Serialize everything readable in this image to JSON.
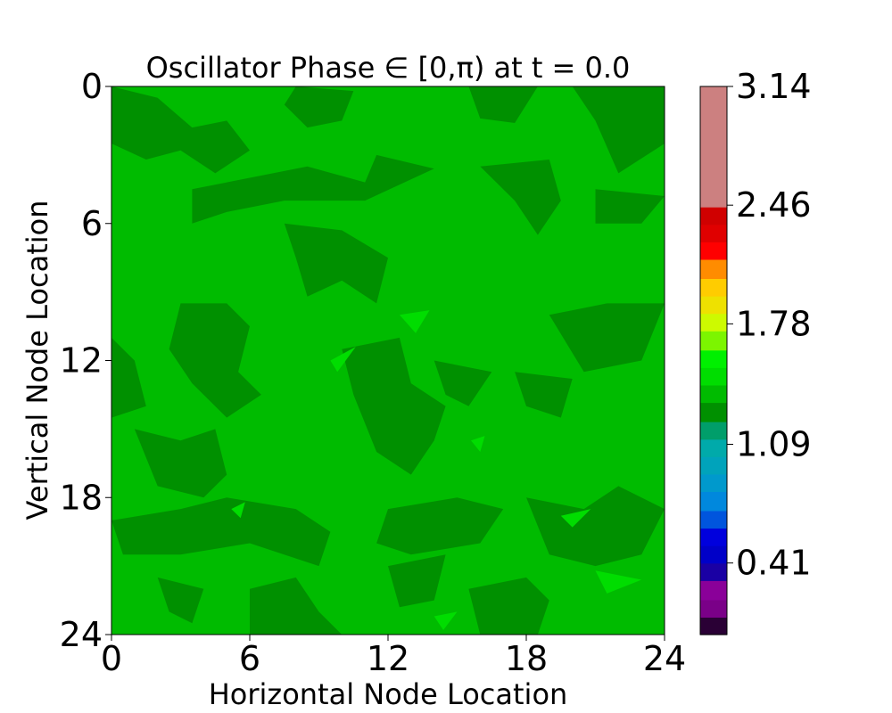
{
  "chart_data": {
    "type": "heatmap",
    "subtype": "filled-contour",
    "title": "Oscillator Phase ∈ [0,π) at t = 0.0",
    "xlabel": "Horizontal Node Location",
    "ylabel": "Vertical Node Location",
    "xlim": [
      0,
      24
    ],
    "ylim": [
      24,
      0
    ],
    "y_axis_inverted": true,
    "x_ticks": [
      "0",
      "6",
      "12",
      "18",
      "24"
    ],
    "y_ticks": [
      "0",
      "6",
      "12",
      "18",
      "24"
    ],
    "background_level_color": "#00bb00",
    "colorbar": {
      "range": [
        0,
        3.14
      ],
      "tick_labels": [
        "3.14",
        "2.46",
        "1.78",
        "1.09",
        "0.41"
      ],
      "tick_values": [
        3.14,
        2.46,
        1.78,
        1.09,
        0.41
      ],
      "levels": [
        {
          "from": 0.0,
          "to": 0.1,
          "color": "#2a0035"
        },
        {
          "from": 0.1,
          "to": 0.2,
          "color": "#7a0088"
        },
        {
          "from": 0.2,
          "to": 0.31,
          "color": "#8a0099"
        },
        {
          "from": 0.31,
          "to": 0.41,
          "color": "#1a00a4"
        },
        {
          "from": 0.41,
          "to": 0.51,
          "color": "#0000c8"
        },
        {
          "from": 0.51,
          "to": 0.61,
          "color": "#0000dd"
        },
        {
          "from": 0.61,
          "to": 0.71,
          "color": "#0055dd"
        },
        {
          "from": 0.71,
          "to": 0.82,
          "color": "#0088dd"
        },
        {
          "from": 0.82,
          "to": 0.92,
          "color": "#0099cc"
        },
        {
          "from": 0.92,
          "to": 1.02,
          "color": "#00a3bb"
        },
        {
          "from": 1.02,
          "to": 1.12,
          "color": "#00aaaa"
        },
        {
          "from": 1.12,
          "to": 1.22,
          "color": "#009e6a"
        },
        {
          "from": 1.22,
          "to": 1.33,
          "color": "#009000"
        },
        {
          "from": 1.33,
          "to": 1.43,
          "color": "#00bb00"
        },
        {
          "from": 1.43,
          "to": 1.53,
          "color": "#00dd00"
        },
        {
          "from": 1.53,
          "to": 1.63,
          "color": "#00f000"
        },
        {
          "from": 1.63,
          "to": 1.74,
          "color": "#7cf500"
        },
        {
          "from": 1.74,
          "to": 1.84,
          "color": "#cdfa00"
        },
        {
          "from": 1.84,
          "to": 1.94,
          "color": "#eee100"
        },
        {
          "from": 1.94,
          "to": 2.04,
          "color": "#ffcc00"
        },
        {
          "from": 2.04,
          "to": 2.15,
          "color": "#ff8c00"
        },
        {
          "from": 2.15,
          "to": 2.25,
          "color": "#ff0000"
        },
        {
          "from": 2.25,
          "to": 2.35,
          "color": "#e00000"
        },
        {
          "from": 2.35,
          "to": 2.45,
          "color": "#d00000"
        },
        {
          "from": 2.45,
          "to": 3.14,
          "color": "#cc8080"
        }
      ]
    },
    "patches": [
      {
        "level": 1.28,
        "color": "#009000",
        "points": [
          [
            0,
            0
          ],
          [
            2,
            0.5
          ],
          [
            3.5,
            1.8
          ],
          [
            5,
            1.5
          ],
          [
            6,
            2.8
          ],
          [
            4.5,
            3.8
          ],
          [
            3,
            2.8
          ],
          [
            1.5,
            3.2
          ],
          [
            0,
            2.5
          ]
        ]
      },
      {
        "level": 1.28,
        "color": "#009000",
        "points": [
          [
            3.5,
            4.5
          ],
          [
            6,
            4
          ],
          [
            8.5,
            3.5
          ],
          [
            11,
            4.2
          ],
          [
            11.5,
            3
          ],
          [
            14,
            3.6
          ],
          [
            11,
            5
          ],
          [
            7.5,
            5
          ],
          [
            5,
            5.5
          ],
          [
            3.5,
            6
          ]
        ]
      },
      {
        "level": 1.28,
        "color": "#009000",
        "points": [
          [
            8,
            0
          ],
          [
            10.5,
            0.2
          ],
          [
            10,
            1.5
          ],
          [
            8.5,
            1.8
          ],
          [
            7.5,
            0.8
          ]
        ]
      },
      {
        "level": 1.28,
        "color": "#009000",
        "points": [
          [
            15.5,
            0
          ],
          [
            18.5,
            0
          ],
          [
            17.5,
            1.6
          ],
          [
            16,
            1.4
          ]
        ]
      },
      {
        "level": 1.28,
        "color": "#009000",
        "points": [
          [
            20,
            0
          ],
          [
            24,
            0
          ],
          [
            24,
            2.5
          ],
          [
            22,
            3.8
          ],
          [
            21,
            1.5
          ]
        ]
      },
      {
        "level": 1.28,
        "color": "#009000",
        "points": [
          [
            16,
            3.5
          ],
          [
            19,
            3.2
          ],
          [
            19.5,
            5
          ],
          [
            18.5,
            6.5
          ],
          [
            17.5,
            5
          ]
        ]
      },
      {
        "level": 1.28,
        "color": "#009000",
        "points": [
          [
            21,
            4.5
          ],
          [
            24,
            4.8
          ],
          [
            23,
            6
          ],
          [
            21,
            6
          ]
        ]
      },
      {
        "level": 1.28,
        "color": "#009000",
        "points": [
          [
            7.5,
            6
          ],
          [
            10,
            6.3
          ],
          [
            12,
            7.5
          ],
          [
            11.5,
            9.5
          ],
          [
            10,
            8.5
          ],
          [
            8.5,
            9.2
          ],
          [
            8,
            7.5
          ]
        ]
      },
      {
        "level": 1.28,
        "color": "#009000",
        "points": [
          [
            3,
            9.5
          ],
          [
            5,
            9.5
          ],
          [
            6,
            10.5
          ],
          [
            5.5,
            12.5
          ],
          [
            6.5,
            13.5
          ],
          [
            5,
            14.5
          ],
          [
            3.5,
            13
          ],
          [
            2.5,
            11.5
          ]
        ]
      },
      {
        "level": 1.28,
        "color": "#009000",
        "points": [
          [
            0,
            11
          ],
          [
            1,
            12
          ],
          [
            1.5,
            14
          ],
          [
            0,
            14.5
          ]
        ]
      },
      {
        "level": 1.28,
        "color": "#009000",
        "points": [
          [
            10,
            11.5
          ],
          [
            12.5,
            11
          ],
          [
            13,
            13
          ],
          [
            14.5,
            14
          ],
          [
            14,
            15.5
          ],
          [
            13,
            17
          ],
          [
            11.5,
            16
          ],
          [
            10.5,
            13.5
          ]
        ]
      },
      {
        "level": 1.28,
        "color": "#009000",
        "points": [
          [
            14,
            12
          ],
          [
            16.5,
            12.5
          ],
          [
            15.5,
            14
          ],
          [
            14.5,
            13.5
          ]
        ]
      },
      {
        "level": 1.28,
        "color": "#009000",
        "points": [
          [
            19,
            10
          ],
          [
            21.5,
            9.5
          ],
          [
            24,
            9.5
          ],
          [
            23,
            12
          ],
          [
            20.5,
            12.5
          ]
        ]
      },
      {
        "level": 1.28,
        "color": "#009000",
        "points": [
          [
            17.5,
            12.5
          ],
          [
            20,
            12.8
          ],
          [
            19.5,
            14.5
          ],
          [
            18,
            14
          ]
        ]
      },
      {
        "level": 1.28,
        "color": "#009000",
        "points": [
          [
            1,
            15
          ],
          [
            3,
            15.5
          ],
          [
            4.5,
            15
          ],
          [
            5,
            17
          ],
          [
            4,
            18
          ],
          [
            2,
            17.5
          ]
        ]
      },
      {
        "level": 1.28,
        "color": "#009000",
        "points": [
          [
            0,
            19
          ],
          [
            3,
            18.5
          ],
          [
            5,
            18
          ],
          [
            8,
            18.5
          ],
          [
            9.5,
            19.5
          ],
          [
            9,
            21
          ],
          [
            6,
            20
          ],
          [
            3,
            20.5
          ],
          [
            0.5,
            20.5
          ]
        ]
      },
      {
        "level": 1.28,
        "color": "#009000",
        "points": [
          [
            12,
            18.5
          ],
          [
            15,
            18
          ],
          [
            17,
            18.5
          ],
          [
            16,
            20
          ],
          [
            13,
            20.5
          ],
          [
            11.5,
            20
          ]
        ]
      },
      {
        "level": 1.28,
        "color": "#009000",
        "points": [
          [
            18,
            18
          ],
          [
            20.5,
            18.5
          ],
          [
            22,
            17.5
          ],
          [
            24,
            18.5
          ],
          [
            23,
            20.5
          ],
          [
            21,
            21
          ],
          [
            19,
            20.5
          ]
        ]
      },
      {
        "level": 1.28,
        "color": "#009000",
        "points": [
          [
            6,
            22
          ],
          [
            8,
            21.5
          ],
          [
            9,
            23
          ],
          [
            10,
            24
          ],
          [
            6,
            24
          ]
        ]
      },
      {
        "level": 1.28,
        "color": "#009000",
        "points": [
          [
            15.5,
            22
          ],
          [
            18,
            21.5
          ],
          [
            19,
            22.5
          ],
          [
            18.5,
            24
          ],
          [
            16,
            24
          ]
        ]
      },
      {
        "level": 1.28,
        "color": "#009000",
        "points": [
          [
            2,
            21.5
          ],
          [
            4,
            22
          ],
          [
            3.5,
            23.5
          ],
          [
            2.5,
            23
          ]
        ]
      },
      {
        "level": 1.28,
        "color": "#009000",
        "points": [
          [
            12,
            21
          ],
          [
            14.5,
            20.5
          ],
          [
            14,
            22.5
          ],
          [
            12.5,
            22.8
          ]
        ]
      },
      {
        "level": 1.48,
        "color": "#00dd00",
        "points": [
          [
            12.5,
            10
          ],
          [
            13.8,
            9.8
          ],
          [
            13.2,
            10.8
          ]
        ]
      },
      {
        "level": 1.48,
        "color": "#00dd00",
        "points": [
          [
            9.5,
            12
          ],
          [
            10.6,
            11.4
          ],
          [
            9.8,
            12.5
          ]
        ]
      },
      {
        "level": 1.48,
        "color": "#00dd00",
        "points": [
          [
            5.2,
            18.5
          ],
          [
            5.8,
            18.2
          ],
          [
            5.6,
            18.9
          ]
        ]
      },
      {
        "level": 1.48,
        "color": "#00dd00",
        "points": [
          [
            19.5,
            18.8
          ],
          [
            20.8,
            18.5
          ],
          [
            20,
            19.3
          ]
        ]
      },
      {
        "level": 1.48,
        "color": "#00dd00",
        "points": [
          [
            21,
            21.2
          ],
          [
            23,
            21.6
          ],
          [
            21.5,
            22.2
          ]
        ]
      },
      {
        "level": 1.48,
        "color": "#00dd00",
        "points": [
          [
            14,
            23.2
          ],
          [
            15,
            23
          ],
          [
            14.4,
            23.8
          ]
        ]
      },
      {
        "level": 1.48,
        "color": "#00dd00",
        "points": [
          [
            15.6,
            15.5
          ],
          [
            16.2,
            15.3
          ],
          [
            16,
            16
          ]
        ]
      }
    ]
  }
}
